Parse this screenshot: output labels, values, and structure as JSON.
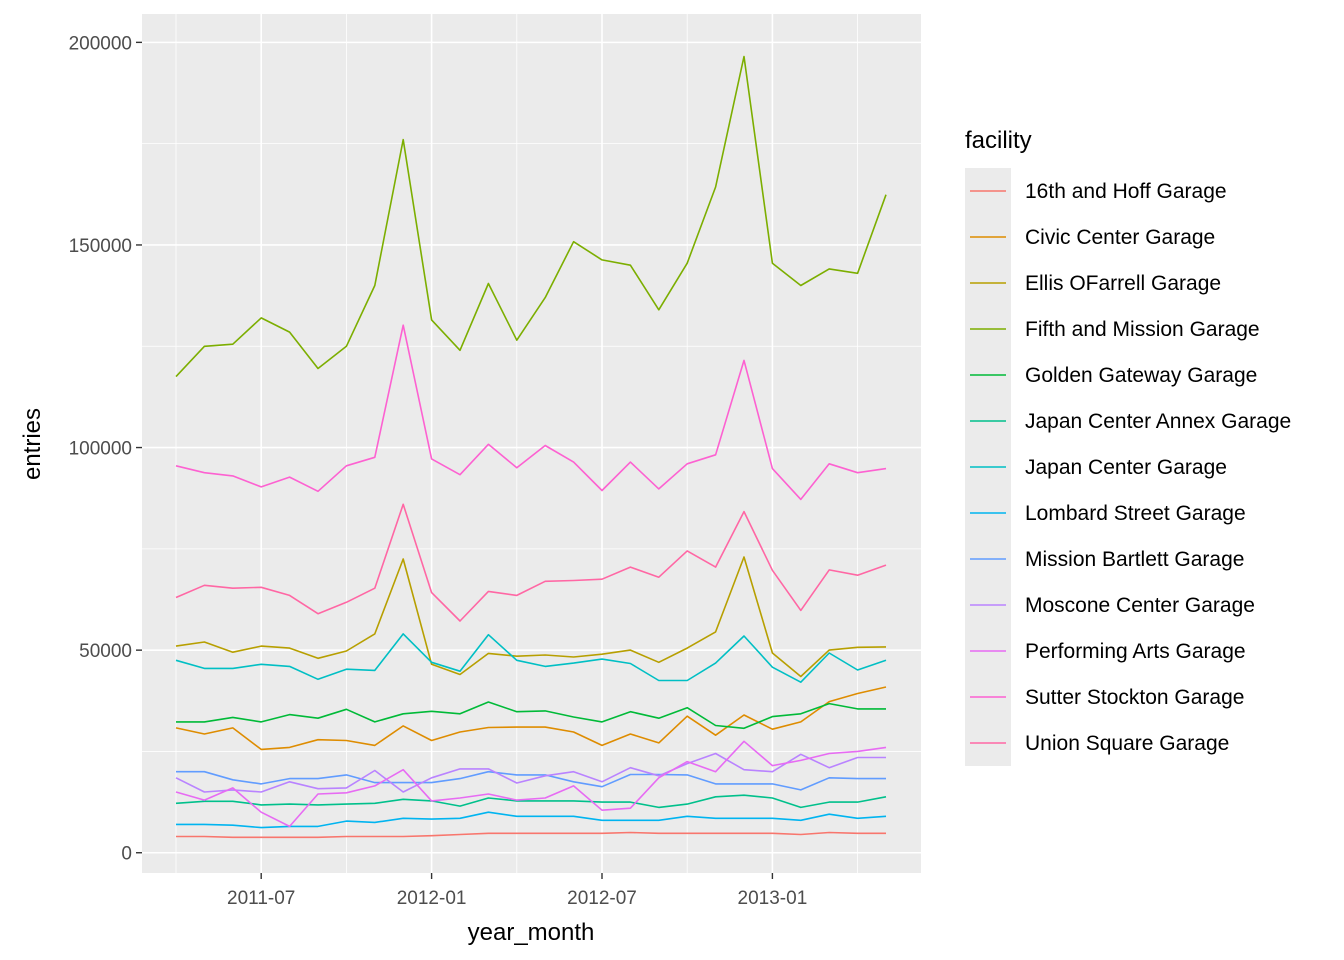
{
  "chart_data": {
    "type": "line",
    "title": "",
    "xlabel": "year_month",
    "ylabel": "entries",
    "x": [
      "2011-04",
      "2011-05",
      "2011-06",
      "2011-07",
      "2011-08",
      "2011-09",
      "2011-10",
      "2011-11",
      "2011-12",
      "2012-01",
      "2012-02",
      "2012-03",
      "2012-04",
      "2012-05",
      "2012-06",
      "2012-07",
      "2012-08",
      "2012-09",
      "2012-10",
      "2012-11",
      "2012-12",
      "2013-01",
      "2013-02",
      "2013-03",
      "2013-04",
      "2013-05"
    ],
    "x_ticks": [
      "2011-07",
      "2012-01",
      "2012-07",
      "2013-01"
    ],
    "y_ticks": [
      0,
      50000,
      100000,
      150000,
      200000
    ],
    "y_tick_labels": [
      "0",
      "50000",
      "100000",
      "150000",
      "200000"
    ],
    "ylim": [
      -5000,
      207000
    ],
    "grid": true,
    "legend_title": "facility",
    "legend_position": "right",
    "series": [
      {
        "name": "16th and Hoff Garage",
        "color": "#F8766D",
        "values": [
          4000,
          4000,
          3800,
          3800,
          3800,
          3800,
          4000,
          4000,
          4000,
          4200,
          4500,
          4800,
          4800,
          4800,
          4800,
          4800,
          5000,
          4800,
          4800,
          4800,
          4800,
          4800,
          4500,
          5000,
          4800,
          4800
        ]
      },
      {
        "name": "Civic Center Garage",
        "color": "#DE8C00",
        "values": [
          30800,
          29300,
          30800,
          25500,
          26000,
          27900,
          27700,
          26500,
          31300,
          27700,
          29800,
          30900,
          31000,
          31000,
          29800,
          26500,
          29300,
          27100,
          33700,
          29000,
          34000,
          30500,
          32300,
          37300,
          39300,
          40900
        ]
      },
      {
        "name": "Ellis OFarrell Garage",
        "color": "#B79F00",
        "values": [
          51000,
          52000,
          49500,
          51000,
          50500,
          48000,
          49800,
          54000,
          72500,
          46500,
          44000,
          49200,
          48500,
          48800,
          48300,
          49000,
          50000,
          47000,
          50500,
          54500,
          73000,
          49300,
          43500,
          50000,
          50700,
          50800
        ]
      },
      {
        "name": "Fifth and Mission Garage",
        "color": "#7CAE00",
        "values": [
          117500,
          125000,
          125500,
          132000,
          128500,
          119500,
          125000,
          140000,
          176000,
          131500,
          124000,
          140500,
          126500,
          137000,
          150800,
          146300,
          145000,
          134000,
          145500,
          164300,
          196500,
          145500,
          140000,
          144100,
          143000,
          162400
        ]
      },
      {
        "name": "Golden Gateway Garage",
        "color": "#00BA38",
        "values": [
          32300,
          32300,
          33400,
          32300,
          34100,
          33200,
          35400,
          32300,
          34300,
          34900,
          34300,
          37200,
          34800,
          35000,
          33500,
          32300,
          34800,
          33200,
          35800,
          31400,
          30700,
          33600,
          34300,
          36800,
          35500,
          35500
        ]
      },
      {
        "name": "Japan Center Annex Garage",
        "color": "#00C08B",
        "values": [
          12200,
          12700,
          12700,
          11800,
          12000,
          11800,
          12000,
          12200,
          13200,
          12800,
          11500,
          13500,
          12800,
          12800,
          12800,
          12500,
          12500,
          11200,
          12000,
          13800,
          14200,
          13500,
          11200,
          12500,
          12500,
          13800
        ]
      },
      {
        "name": "Japan Center Garage",
        "color": "#00BFC4",
        "values": [
          47500,
          45500,
          45500,
          46500,
          46000,
          42800,
          45300,
          45000,
          54000,
          47000,
          44800,
          53800,
          47500,
          46000,
          46800,
          47800,
          46700,
          42500,
          42500,
          46800,
          53500,
          45800,
          42100,
          49300,
          45100,
          47500
        ]
      },
      {
        "name": "Lombard Street Garage",
        "color": "#00B4F0",
        "values": [
          7000,
          7000,
          6800,
          6200,
          6500,
          6500,
          7800,
          7500,
          8500,
          8300,
          8500,
          10000,
          9000,
          9000,
          9000,
          8000,
          8000,
          8000,
          9000,
          8500,
          8500,
          8500,
          8000,
          9500,
          8500,
          9000
        ]
      },
      {
        "name": "Mission Bartlett Garage",
        "color": "#619CFF",
        "values": [
          20000,
          20000,
          18000,
          17000,
          18300,
          18300,
          19200,
          17300,
          17300,
          17300,
          18300,
          20000,
          19200,
          19200,
          17500,
          16300,
          19300,
          19300,
          19200,
          17000,
          17000,
          17000,
          15500,
          18500,
          18300,
          18300
        ]
      },
      {
        "name": "Moscone Center Garage",
        "color": "#B983FF",
        "values": [
          18500,
          15000,
          15500,
          15000,
          17500,
          15800,
          16000,
          20300,
          15000,
          18500,
          20700,
          20700,
          17200,
          19000,
          20000,
          17500,
          21000,
          19000,
          22000,
          24500,
          20500,
          20000,
          24300,
          21000,
          23500,
          23500
        ]
      },
      {
        "name": "Performing Arts Garage",
        "color": "#E76BF3",
        "values": [
          15000,
          13000,
          16000,
          10000,
          6500,
          14500,
          14800,
          16500,
          20500,
          12800,
          13500,
          14500,
          13000,
          13500,
          16500,
          10500,
          11000,
          18500,
          22500,
          20000,
          27500,
          21500,
          22800,
          24500,
          25000,
          26000
        ]
      },
      {
        "name": "Sutter Stockton Garage",
        "color": "#FD61D1",
        "values": [
          95500,
          93800,
          93000,
          90300,
          92700,
          89200,
          95500,
          97600,
          130200,
          97200,
          93300,
          100800,
          95000,
          100500,
          96400,
          89400,
          96400,
          89800,
          96000,
          98200,
          121500,
          94800,
          87200,
          96000,
          93800,
          94800
        ]
      },
      {
        "name": "Union Square Garage",
        "color": "#FF67A4",
        "values": [
          63000,
          66000,
          65300,
          65500,
          63500,
          59000,
          61800,
          65300,
          86000,
          64200,
          57200,
          64500,
          63500,
          67000,
          67200,
          67500,
          70500,
          68000,
          74500,
          70500,
          84200,
          69700,
          59800,
          69800,
          68500,
          71000
        ]
      }
    ]
  }
}
